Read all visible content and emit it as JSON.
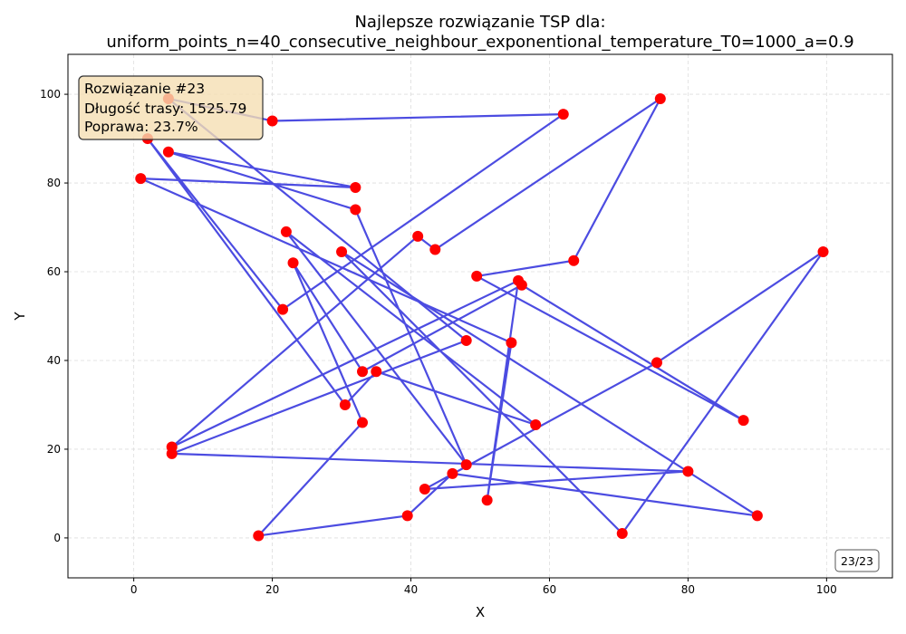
{
  "chart_data": {
    "type": "line",
    "title_line1": "Najlepsze rozwiązanie TSP dla:",
    "title_line2": "uniform_points_n=40_consecutive_neighbour_exponentional_temperature_T0=1000_a=0.9",
    "xlabel": "X",
    "ylabel": "Y",
    "xlim": [
      -9.5,
      109.5
    ],
    "ylim": [
      -9,
      109
    ],
    "xticks": [
      0,
      20,
      40,
      60,
      80,
      100
    ],
    "yticks": [
      0,
      20,
      40,
      60,
      80,
      100
    ],
    "grid": true,
    "series": [
      {
        "route": [
          [
            5,
            99
          ],
          [
            20,
            94
          ],
          [
            62,
            95.5
          ],
          [
            21.5,
            51.5
          ],
          [
            2,
            90
          ],
          [
            30.5,
            30
          ],
          [
            35,
            37.5
          ],
          [
            58,
            25.5
          ],
          [
            22,
            69
          ],
          [
            48,
            16.5
          ],
          [
            32,
            74
          ],
          [
            5,
            87
          ],
          [
            32,
            79
          ],
          [
            1,
            81
          ],
          [
            54.5,
            44
          ],
          [
            51,
            8.5
          ],
          [
            55.5,
            58
          ],
          [
            5.5,
            20.5
          ],
          [
            41,
            68
          ],
          [
            43.5,
            65
          ],
          [
            76,
            99
          ],
          [
            63.5,
            62.5
          ],
          [
            49.5,
            59
          ],
          [
            88,
            26.5
          ],
          [
            56,
            57
          ],
          [
            33,
            37.5
          ],
          [
            23,
            62
          ],
          [
            33,
            26
          ],
          [
            18,
            0.5
          ],
          [
            39.5,
            5
          ],
          [
            46,
            14.5
          ],
          [
            90,
            5
          ],
          [
            30,
            64.5
          ],
          [
            70.5,
            1
          ],
          [
            99.5,
            64.5
          ],
          [
            75.5,
            39.5
          ],
          [
            42,
            11
          ],
          [
            80,
            15
          ],
          [
            5.5,
            19
          ],
          [
            48,
            44.5
          ],
          [
            5,
            99
          ]
        ]
      }
    ]
  },
  "info_box": {
    "line1": "Rozwiązanie #23",
    "line2": "Długość trasy: 1525.79",
    "line3": "Poprawa: 23.7%"
  },
  "counter": "23/23",
  "colors": {
    "route_line": "#3333dd",
    "point": "#ff0000",
    "info_box_bg": "#f5deb3",
    "grid": "#dddddd"
  }
}
